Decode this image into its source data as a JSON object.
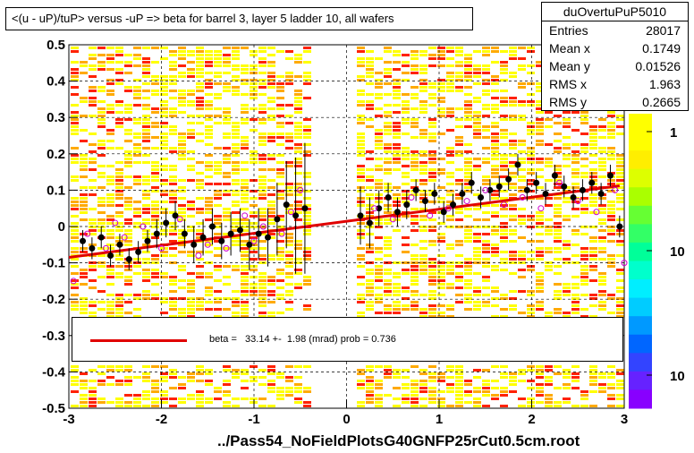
{
  "header": {
    "title": "<(u - uP)/tuP> versus  -uP => beta for barrel 3, layer 5 ladder 10, all wafers"
  },
  "stats": {
    "name": "duOvertuPuP5010",
    "rows": [
      {
        "label": "Entries",
        "value": "28017"
      },
      {
        "label": "Mean x",
        "value": "0.1749"
      },
      {
        "label": "Mean y",
        "value": "0.01526"
      },
      {
        "label": "RMS x",
        "value": "1.963"
      },
      {
        "label": "RMS y",
        "value": "0.2665"
      }
    ]
  },
  "fit": {
    "text": "beta =   33.14 +-  1.98 (mrad) prob = 0.736"
  },
  "footer": {
    "filename": "../Pass54_NoFieldPlotsG40GNFP25rCut0.5cm.root"
  },
  "palette": {
    "heat_low": "#ffff00",
    "heat_mid": "#ffaa00",
    "heat_high": "#ff2200",
    "fit_line": "#e00000",
    "profile_marker": "#000000",
    "open_marker": "#cc00cc"
  },
  "chart_data": {
    "type": "scatter",
    "title": "<(u - uP)/tuP> versus  -uP => beta for barrel 3, layer 5 ladder 10, all wafers",
    "xlabel": "",
    "ylabel": "",
    "xlim": [
      -3,
      3
    ],
    "ylim": [
      -0.5,
      0.5
    ],
    "x_ticks": [
      "-3",
      "-2",
      "-1",
      "0",
      "1",
      "2",
      "3"
    ],
    "y_ticks": [
      "-0.5",
      "-0.4",
      "-0.3",
      "-0.2",
      "-0.1",
      "0",
      "0.1",
      "0.2",
      "0.3",
      "0.4",
      "0.5"
    ],
    "grid": true,
    "color_scale_labels": [
      "1",
      "10",
      "10"
    ],
    "fit_line": {
      "x": [
        -3,
        2.95
      ],
      "y": [
        -0.085,
        0.112
      ]
    },
    "series": [
      {
        "marker": "filled-circle",
        "x": [
          -2.85,
          -2.75,
          -2.65,
          -2.55,
          -2.45,
          -2.35,
          -2.25,
          -2.15,
          -2.05,
          -1.95,
          -1.85,
          -1.75,
          -1.65,
          -1.55,
          -1.45,
          -1.35,
          -1.25,
          -1.15,
          -1.05,
          -0.95,
          -0.85,
          -0.75,
          -0.65,
          -0.55,
          -0.45,
          0.15,
          0.25,
          0.35,
          0.45,
          0.55,
          0.65,
          0.75,
          0.85,
          0.95,
          1.05,
          1.15,
          1.25,
          1.35,
          1.45,
          1.55,
          1.65,
          1.75,
          1.85,
          1.95,
          2.05,
          2.15,
          2.25,
          2.35,
          2.45,
          2.55,
          2.65,
          2.75,
          2.85,
          2.95
        ],
        "y": [
          -0.04,
          -0.06,
          -0.03,
          -0.08,
          -0.05,
          -0.09,
          -0.07,
          -0.04,
          -0.02,
          0.01,
          0.03,
          -0.02,
          -0.05,
          -0.03,
          0.0,
          -0.04,
          -0.02,
          -0.01,
          -0.05,
          -0.02,
          -0.03,
          0.02,
          0.06,
          0.03,
          0.05,
          0.03,
          0.01,
          0.05,
          0.08,
          0.04,
          0.06,
          0.1,
          0.07,
          0.09,
          0.04,
          0.06,
          0.09,
          0.12,
          0.08,
          0.1,
          0.11,
          0.13,
          0.17,
          0.1,
          0.12,
          0.09,
          0.14,
          0.11,
          0.08,
          0.1,
          0.12,
          0.09,
          0.14,
          0.0
        ],
        "yerr": [
          0.03,
          0.03,
          0.03,
          0.03,
          0.03,
          0.03,
          0.03,
          0.03,
          0.04,
          0.04,
          0.04,
          0.04,
          0.05,
          0.05,
          0.05,
          0.05,
          0.06,
          0.06,
          0.07,
          0.07,
          0.08,
          0.1,
          0.12,
          0.16,
          0.18,
          0.08,
          0.07,
          0.05,
          0.04,
          0.04,
          0.04,
          0.03,
          0.03,
          0.03,
          0.03,
          0.03,
          0.03,
          0.03,
          0.03,
          0.03,
          0.03,
          0.03,
          0.03,
          0.03,
          0.03,
          0.03,
          0.03,
          0.03,
          0.03,
          0.03,
          0.03,
          0.03,
          0.03,
          0.03
        ]
      },
      {
        "marker": "open-circle",
        "x": [
          -2.95,
          -2.8,
          -2.6,
          -2.5,
          -2.4,
          -2.2,
          -2.0,
          -1.8,
          -1.6,
          -1.5,
          -1.3,
          -1.1,
          -1.0,
          -0.9,
          -0.7,
          -0.6,
          -0.5,
          0.3,
          0.5,
          0.7,
          0.9,
          1.1,
          1.3,
          1.5,
          1.7,
          1.9,
          2.1,
          2.3,
          2.5,
          2.7,
          2.9,
          3.0
        ],
        "y": [
          -0.15,
          -0.02,
          -0.06,
          0.01,
          -0.03,
          0.0,
          -0.06,
          0.02,
          -0.08,
          -0.05,
          -0.06,
          0.03,
          -0.04,
          0.0,
          -0.02,
          0.04,
          0.1,
          0.05,
          0.02,
          0.08,
          0.03,
          0.05,
          0.07,
          0.1,
          0.06,
          0.08,
          0.05,
          0.12,
          0.07,
          0.04,
          0.1,
          -0.1
        ]
      }
    ]
  }
}
